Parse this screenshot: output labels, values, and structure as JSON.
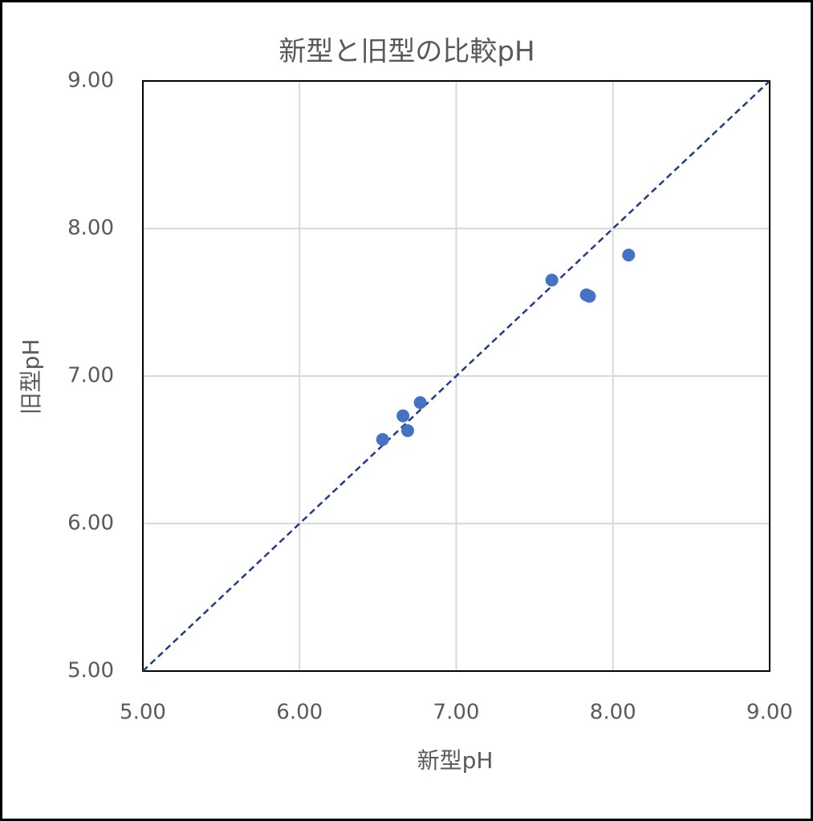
{
  "chart_data": {
    "type": "scatter",
    "title": "新型と旧型の比較pH",
    "x_label": "新型pH",
    "y_label": "旧型pH",
    "series": [
      {
        "color": "#4472c4",
        "x": [
          6.53,
          6.66,
          6.69,
          6.77,
          7.61,
          7.83,
          7.85,
          8.1
        ],
        "values": [
          6.57,
          6.73,
          6.63,
          6.82,
          7.65,
          7.55,
          7.54,
          7.82
        ]
      }
    ],
    "reference_line": {
      "x": [
        5,
        9
      ],
      "y": [
        5,
        9
      ],
      "color": "#1f3c88",
      "dashed": true
    },
    "xlim": [
      5,
      9
    ],
    "ylim": [
      5,
      9
    ],
    "xticks": [
      {
        "value": 5,
        "label": "5.00"
      },
      {
        "value": 6,
        "label": "6.00"
      },
      {
        "value": 7,
        "label": "7.00"
      },
      {
        "value": 8,
        "label": "8.00"
      },
      {
        "value": 9,
        "label": "9.00"
      }
    ],
    "yticks": [
      {
        "value": 5,
        "label": "5.00"
      },
      {
        "value": 6,
        "label": "6.00"
      },
      {
        "value": 7,
        "label": "7.00"
      },
      {
        "value": 8,
        "label": "8.00"
      },
      {
        "value": 9,
        "label": "9.00"
      }
    ],
    "grid": true
  }
}
